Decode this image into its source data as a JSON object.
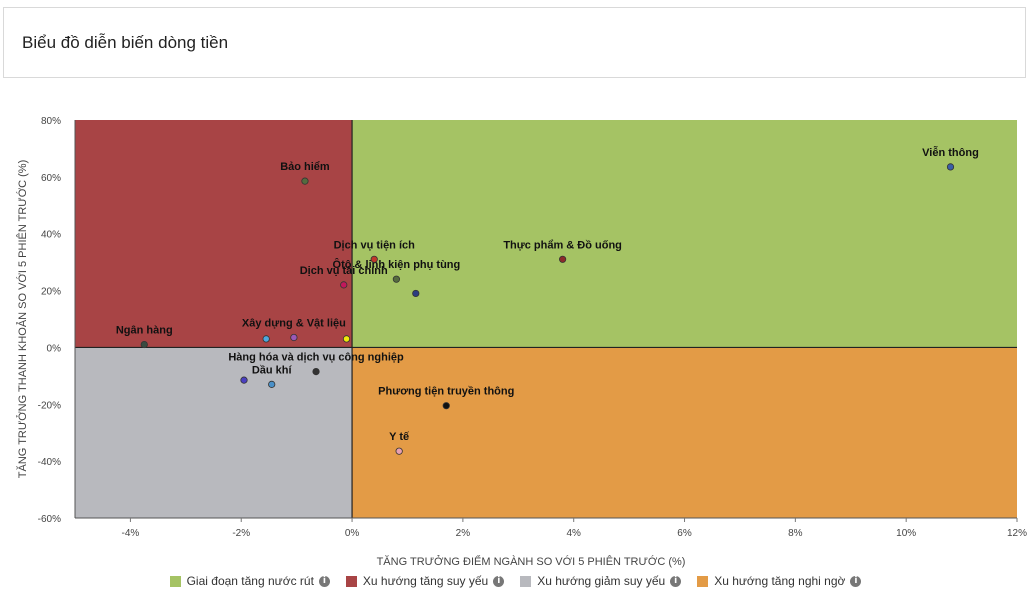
{
  "header": {
    "title": "Biểu đồ diễn biến dòng tiền"
  },
  "chart_data": {
    "type": "scatter",
    "title": "",
    "xlabel": "TĂNG TRƯỞNG ĐIỂM NGÀNH SO VỚI 5 PHIÊN TRƯỚC (%)",
    "ylabel": "TĂNG TRƯỞNG THANH KHOẢN SO VỚI 5 PHIÊN TRƯỚC (%)",
    "xlim": [
      -5,
      12
    ],
    "ylim": [
      -60,
      80
    ],
    "x_ticks": [
      -4,
      -2,
      0,
      2,
      4,
      6,
      8,
      10,
      12
    ],
    "y_ticks": [
      -60,
      -40,
      -20,
      0,
      20,
      40,
      60,
      80
    ],
    "x_tick_labels": [
      "-4%",
      "-2%",
      "0%",
      "2%",
      "4%",
      "6%",
      "8%",
      "10%",
      "12%"
    ],
    "y_tick_labels": [
      "-60%",
      "-40%",
      "-20%",
      "0%",
      "20%",
      "40%",
      "60%",
      "80%"
    ],
    "quadrants": [
      {
        "name": "Giai đoạn tăng nước rút",
        "color": "#a5c364",
        "region": "top-right"
      },
      {
        "name": "Xu hướng tăng suy yếu",
        "color": "#a84445",
        "region": "top-left"
      },
      {
        "name": "Xu hướng giảm suy yếu",
        "color": "#b8b9be",
        "region": "bottom-left"
      },
      {
        "name": "Xu hướng tăng nghi ngờ",
        "color": "#e39b46",
        "region": "bottom-right"
      }
    ],
    "points": [
      {
        "label": "Viễn thông",
        "x": 10.8,
        "y": 63.5,
        "color": "#3a5ea8"
      },
      {
        "label": "Bảo hiểm",
        "x": -0.85,
        "y": 58.5,
        "color": "#556b3f"
      },
      {
        "label": "Ôtô & linh kiện phụ tùng",
        "x": 0.8,
        "y": 24,
        "color": "#556b3f"
      },
      {
        "label": "Dịch vụ tiện ích",
        "x": 0.4,
        "y": 31,
        "color": "#c0392b"
      },
      {
        "label": "Thực phẩm & Đồ uống",
        "x": 3.8,
        "y": 31,
        "color": "#8b2a2a"
      },
      {
        "label": "Dịch vụ tài chính",
        "x": -0.15,
        "y": 22,
        "color": "#c2185b"
      },
      {
        "label": "",
        "x": 1.15,
        "y": 19,
        "color": "#2c3e80"
      },
      {
        "label": "Ngân hàng",
        "x": -3.75,
        "y": 1,
        "color": "#3a4a40"
      },
      {
        "label": "Xây dựng & Vật liệu",
        "x": -1.05,
        "y": 3.5,
        "color": "#9b59b6"
      },
      {
        "label": "",
        "x": -1.55,
        "y": 3,
        "color": "#4ea8de"
      },
      {
        "label": "",
        "x": -0.1,
        "y": 3,
        "color": "#f1e80a"
      },
      {
        "label": "Hàng hóa và dịch vụ công nghiệp",
        "x": -0.65,
        "y": -8.5,
        "color": "#333333"
      },
      {
        "label": "Dầu khí",
        "x": -1.45,
        "y": -13,
        "color": "#4a90c8"
      },
      {
        "label": "",
        "x": -1.95,
        "y": -11.5,
        "color": "#4a3fc0"
      },
      {
        "label": "Phương tiện truyền thông",
        "x": 1.7,
        "y": -20.5,
        "color": "#111111"
      },
      {
        "label": "Y tế",
        "x": 0.85,
        "y": -36.5,
        "color": "#e8a0b0"
      }
    ],
    "legend_placement": "bottom"
  },
  "legend": {
    "items": [
      {
        "label": "Giai đoạn tăng nước rút",
        "color": "#a5c364"
      },
      {
        "label": "Xu hướng tăng suy yếu",
        "color": "#a84445"
      },
      {
        "label": "Xu hướng giảm suy yếu",
        "color": "#b8b9be"
      },
      {
        "label": "Xu hướng tăng nghi ngờ",
        "color": "#e39b46"
      }
    ],
    "info_glyph": "i"
  }
}
